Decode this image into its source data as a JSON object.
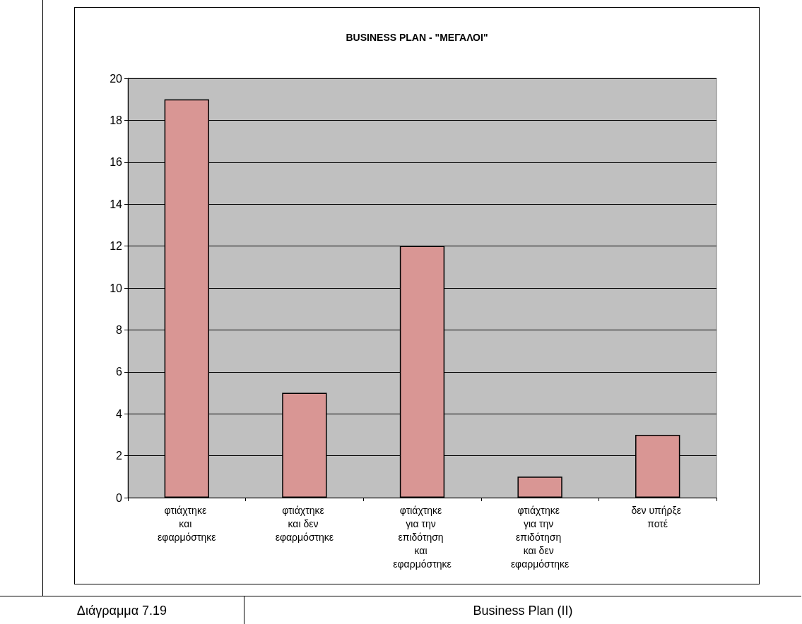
{
  "chart_data": {
    "type": "bar",
    "title": "BUSINESS PLAN - \"ΜΕΓΑΛΟΙ\"",
    "categories": [
      "φτιάχτηκε και εφαρμόστηκε",
      "φτιάχτηκε και δεν εφαρμόστηκε",
      "φτιάχτηκε για την επιδότηση και εφαρμόστηκε",
      "φτιάχτηκε για την επιδότηση και δεν εφαρμόστηκε",
      "δεν υπήρξε ποτέ"
    ],
    "values": [
      19,
      5,
      12,
      1,
      3
    ],
    "color": "#d99694",
    "ylim": [
      0,
      20
    ],
    "yticks": [
      0,
      2,
      4,
      6,
      8,
      10,
      12,
      14,
      16,
      18,
      20
    ],
    "grid": "y",
    "annotations": [
      "Διάγραμμα 7.19",
      "Business Plan (II)"
    ]
  }
}
